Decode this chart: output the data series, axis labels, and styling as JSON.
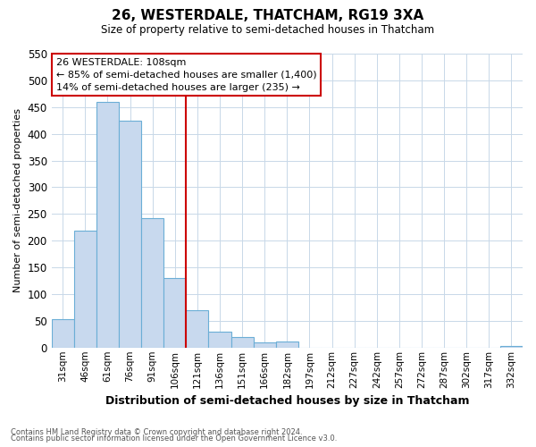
{
  "title": "26, WESTERDALE, THATCHAM, RG19 3XA",
  "subtitle": "Size of property relative to semi-detached houses in Thatcham",
  "xlabel": "Distribution of semi-detached houses by size in Thatcham",
  "ylabel": "Number of semi-detached properties",
  "footnote1": "Contains HM Land Registry data © Crown copyright and database right 2024.",
  "footnote2": "Contains public sector information licensed under the Open Government Licence v3.0.",
  "bar_labels": [
    "31sqm",
    "46sqm",
    "61sqm",
    "76sqm",
    "91sqm",
    "106sqm",
    "121sqm",
    "136sqm",
    "151sqm",
    "166sqm",
    "182sqm",
    "197sqm",
    "212sqm",
    "227sqm",
    "242sqm",
    "257sqm",
    "272sqm",
    "287sqm",
    "302sqm",
    "317sqm",
    "332sqm"
  ],
  "bar_values": [
    53,
    218,
    460,
    425,
    243,
    130,
    70,
    30,
    19,
    10,
    11,
    0,
    0,
    0,
    0,
    0,
    0,
    0,
    0,
    0,
    3
  ],
  "bar_color": "#c8d9ee",
  "bar_edge_color": "#6baed6",
  "ylim": [
    0,
    550
  ],
  "yticks": [
    0,
    50,
    100,
    150,
    200,
    250,
    300,
    350,
    400,
    450,
    500,
    550
  ],
  "vline_x_index": 5,
  "vline_color": "#cc0000",
  "annotation_title": "26 WESTERDALE: 108sqm",
  "annotation_line1": "← 85% of semi-detached houses are smaller (1,400)",
  "annotation_line2": "14% of semi-detached houses are larger (235) →",
  "background_color": "#ffffff",
  "grid_color": "#c8d8e8"
}
